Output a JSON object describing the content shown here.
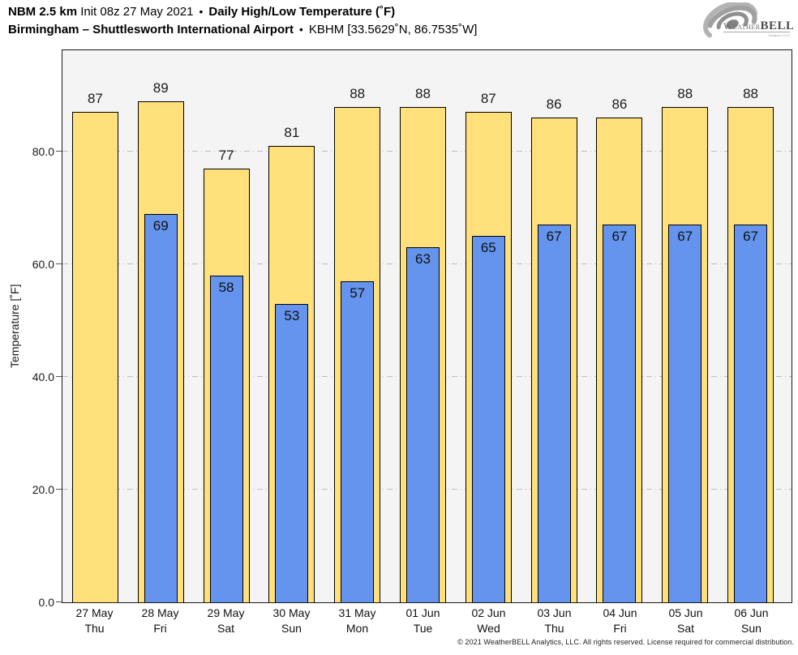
{
  "header": {
    "title_line1": {
      "model": "NBM 2.5 km",
      "init": "Init 08z 27 May 2021",
      "sep": "•",
      "product": "Daily High/Low Temperature (˚F)"
    },
    "title_line2": {
      "station": "Birmingham – Shuttlesworth International Airport",
      "sep": "•",
      "meta": "KBHM [33.5629˚N, 86.7535˚W]"
    },
    "logo": {
      "weather": "Weather",
      "bell": "BELL",
      "sub": "Analytics LLC"
    }
  },
  "chart_data": {
    "type": "bar",
    "title": "NBM 2.5 km Daily High/Low Temperature (°F) — Birmingham Shuttlesworth International Airport (KBHM)",
    "xlabel": "",
    "ylabel": "Temperature [˚F]",
    "ylim": [
      0,
      98
    ],
    "yticks": [
      0,
      20,
      40,
      60,
      80
    ],
    "ytick_labels": [
      "0.0",
      "20.0",
      "40.0",
      "60.0",
      "80.0"
    ],
    "grid": "horizontal dash-dot gridlines at 20/40/60/80, drawn behind bars",
    "legend_position": "none",
    "categories": [
      {
        "date": "27 May",
        "day": "Thu"
      },
      {
        "date": "28 May",
        "day": "Fri"
      },
      {
        "date": "29 May",
        "day": "Sat"
      },
      {
        "date": "30 May",
        "day": "Sun"
      },
      {
        "date": "31 May",
        "day": "Mon"
      },
      {
        "date": "01 Jun",
        "day": "Tue"
      },
      {
        "date": "02 Jun",
        "day": "Wed"
      },
      {
        "date": "03 Jun",
        "day": "Thu"
      },
      {
        "date": "04 Jun",
        "day": "Fri"
      },
      {
        "date": "05 Jun",
        "day": "Sat"
      },
      {
        "date": "06 Jun",
        "day": "Sun"
      }
    ],
    "series": [
      {
        "name": "Daily High",
        "color": "#ffe07a",
        "values": [
          87,
          89,
          77,
          81,
          88,
          88,
          87,
          86,
          86,
          88,
          88
        ]
      },
      {
        "name": "Daily Low",
        "color": "#6494ed",
        "values": [
          null,
          69,
          58,
          53,
          57,
          63,
          65,
          67,
          67,
          67,
          67
        ]
      }
    ]
  },
  "footer": {
    "copyright": "© 2021 WeatherBELL Analytics, LLC. All rights reserved. License required for commercial distribution."
  },
  "style": {
    "high_color": "#ffe07a",
    "low_color": "#6494ed",
    "plot_bg": "#f4f4f4",
    "grid_color": "#bdbdbd",
    "bar_border": "#000000"
  }
}
